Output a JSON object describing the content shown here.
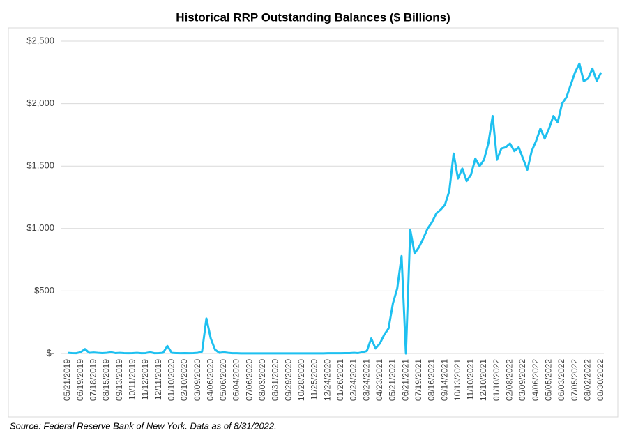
{
  "chart_data": {
    "type": "line",
    "title": "Historical RRP Outstanding Balances ($ Billions)",
    "source": "Source: Federal Reserve Bank of New York. Data as of 8/31/2022.",
    "color": "#1ec0f0",
    "ylim": [
      0,
      2500
    ],
    "yticks": [
      {
        "value": 0,
        "label": "$-"
      },
      {
        "value": 500,
        "label": "$500"
      },
      {
        "value": 1000,
        "label": "$1,000"
      },
      {
        "value": 1500,
        "label": "$1,500"
      },
      {
        "value": 2000,
        "label": "$2,000"
      },
      {
        "value": 2500,
        "label": "$2,500"
      }
    ],
    "grid": true,
    "categories": [
      "05/21/2019",
      null,
      null,
      "06/19/2019",
      null,
      null,
      "07/18/2019",
      null,
      null,
      "08/15/2019",
      null,
      null,
      "09/13/2019",
      null,
      null,
      "10/11/2019",
      null,
      null,
      "11/12/2019",
      null,
      null,
      "12/11/2019",
      null,
      null,
      "01/10/2020",
      null,
      null,
      "02/10/2020",
      null,
      null,
      "03/09/2020",
      null,
      null,
      "04/06/2020",
      null,
      null,
      "05/06/2020",
      null,
      null,
      "06/04/2020",
      null,
      null,
      "07/06/2020",
      null,
      null,
      "08/03/2020",
      null,
      null,
      "08/31/2020",
      null,
      null,
      "09/29/2020",
      null,
      null,
      "10/28/2020",
      null,
      null,
      "11/25/2020",
      null,
      null,
      "12/24/2020",
      null,
      null,
      "01/26/2021",
      null,
      null,
      "02/24/2021",
      null,
      null,
      "03/24/2021",
      null,
      null,
      "04/23/2021",
      null,
      null,
      "05/21/2021",
      null,
      null,
      "06/21/2021",
      null,
      null,
      "07/19/2021",
      null,
      null,
      "08/16/2021",
      null,
      null,
      "09/14/2021",
      null,
      null,
      "10/13/2021",
      null,
      null,
      "11/10/2021",
      null,
      null,
      "12/10/2021",
      null,
      null,
      "01/10/2022",
      null,
      null,
      "02/08/2022",
      null,
      null,
      "03/09/2022",
      null,
      null,
      "04/06/2022",
      null,
      null,
      "05/05/2022",
      null,
      null,
      "06/03/2022",
      null,
      null,
      "07/05/2022",
      null,
      null,
      "08/02/2022",
      null,
      null,
      "08/30/2022"
    ],
    "values": [
      5,
      3,
      2,
      10,
      35,
      5,
      8,
      5,
      3,
      5,
      10,
      3,
      5,
      3,
      2,
      3,
      5,
      2,
      3,
      10,
      2,
      3,
      5,
      60,
      5,
      3,
      2,
      3,
      2,
      3,
      5,
      15,
      280,
      120,
      30,
      5,
      10,
      5,
      2,
      2,
      1,
      1,
      1,
      1,
      1,
      1,
      1,
      1,
      1,
      1,
      1,
      1,
      1,
      1,
      1,
      1,
      1,
      1,
      1,
      1,
      2,
      2,
      2,
      2,
      3,
      3,
      5,
      3,
      10,
      20,
      120,
      40,
      80,
      150,
      200,
      400,
      520,
      780,
      0,
      990,
      800,
      850,
      920,
      1000,
      1050,
      1120,
      1150,
      1190,
      1300,
      1600,
      1400,
      1480,
      1380,
      1430,
      1560,
      1500,
      1550,
      1680,
      1900,
      1550,
      1640,
      1650,
      1680,
      1620,
      1650,
      1560,
      1470,
      1620,
      1700,
      1800,
      1720,
      1800,
      1900,
      1850,
      2000,
      2050,
      2150,
      2250,
      2320,
      2180,
      2200,
      2280,
      2180,
      2250
    ]
  }
}
